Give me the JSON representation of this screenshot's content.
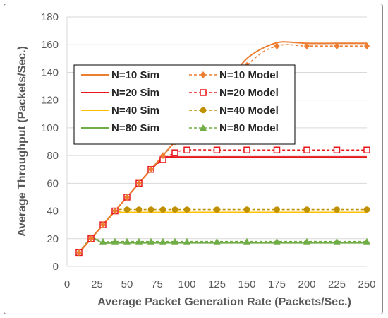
{
  "chart_data": {
    "type": "line",
    "title": "",
    "xlabel": "Average Packet Generation Rate (Packets/Sec.)",
    "ylabel": "Average Throughput (Packets/Sec.)",
    "xlim": [
      0,
      250
    ],
    "ylim": [
      0,
      180
    ],
    "xticks": [
      0,
      25,
      50,
      75,
      100,
      125,
      150,
      175,
      200,
      225,
      250
    ],
    "yticks": [
      0,
      20,
      40,
      60,
      80,
      100,
      120,
      140,
      160,
      180
    ],
    "grid": "horizontal",
    "legend_placement": "center-left",
    "series": [
      {
        "name": "N=10 Sim",
        "color": "#ED7D31",
        "style": "solid",
        "marker": "none",
        "x": [
          10,
          20,
          30,
          40,
          50,
          60,
          70,
          80,
          90,
          100,
          110,
          120,
          130,
          140,
          150,
          160,
          170,
          180,
          200,
          225,
          250
        ],
        "y": [
          10,
          20,
          30,
          40,
          50,
          60,
          70,
          80,
          90,
          100,
          110,
          120,
          130,
          140,
          150,
          156,
          160,
          162,
          161,
          161,
          161
        ]
      },
      {
        "name": "N=10 Model",
        "color": "#ED7D31",
        "style": "dashed",
        "marker": "diamond",
        "x": [
          10,
          20,
          30,
          40,
          50,
          60,
          70,
          80,
          90,
          150,
          175,
          200,
          225,
          250
        ],
        "y": [
          10,
          20,
          30,
          40,
          50,
          60,
          70,
          80,
          90,
          145,
          159,
          159,
          159,
          159
        ]
      },
      {
        "name": "N=20 Sim",
        "color": "#E8161B",
        "style": "solid",
        "marker": "none",
        "x": [
          10,
          20,
          30,
          40,
          50,
          60,
          70,
          80,
          85,
          90,
          100,
          125,
          150,
          175,
          200,
          225,
          250
        ],
        "y": [
          10,
          20,
          30,
          40,
          50,
          60,
          70,
          78,
          79,
          79,
          79,
          79,
          79,
          79,
          79,
          79,
          79
        ]
      },
      {
        "name": "N=20 Model",
        "color": "#E8161B",
        "style": "dashed",
        "marker": "square-open",
        "x": [
          10,
          20,
          30,
          40,
          50,
          60,
          70,
          80,
          90,
          100,
          125,
          150,
          175,
          200,
          225,
          250
        ],
        "y": [
          10,
          20,
          30,
          40,
          50,
          60,
          70,
          77,
          82,
          84,
          84,
          84,
          84,
          84,
          84,
          84
        ]
      },
      {
        "name": "N=40 Sim",
        "color": "#FFC000",
        "style": "solid",
        "marker": "none",
        "x": [
          10,
          20,
          30,
          40,
          45,
          50,
          75,
          100,
          125,
          150,
          175,
          200,
          225,
          250
        ],
        "y": [
          10,
          20,
          30,
          40,
          39,
          39,
          39,
          39,
          39,
          39,
          39,
          39,
          39,
          39
        ]
      },
      {
        "name": "N=40 Model",
        "color": "#BF9000",
        "style": "dashed",
        "marker": "circle",
        "x": [
          10,
          20,
          30,
          40,
          50,
          60,
          70,
          80,
          90,
          100,
          125,
          150,
          175,
          200,
          225,
          250
        ],
        "y": [
          10,
          20,
          30,
          40,
          41,
          41,
          41,
          41,
          41,
          41,
          41,
          41,
          41,
          41,
          41,
          41
        ]
      },
      {
        "name": "N=80 Sim",
        "color": "#70AD47",
        "style": "solid",
        "marker": "none",
        "x": [
          10,
          20,
          25,
          30,
          40,
          50,
          75,
          100,
          125,
          150,
          175,
          200,
          225,
          250
        ],
        "y": [
          10,
          20,
          19,
          17,
          17,
          17,
          17,
          17,
          17,
          17,
          17,
          17,
          17,
          17
        ]
      },
      {
        "name": "N=80 Model",
        "color": "#70AD47",
        "style": "dashed",
        "marker": "triangle",
        "x": [
          10,
          20,
          30,
          40,
          50,
          60,
          70,
          80,
          90,
          100,
          125,
          150,
          175,
          200,
          225,
          250
        ],
        "y": [
          10,
          20,
          18,
          18,
          18,
          18,
          18,
          18,
          18,
          18,
          18,
          18,
          18,
          18,
          18,
          18
        ]
      }
    ]
  }
}
